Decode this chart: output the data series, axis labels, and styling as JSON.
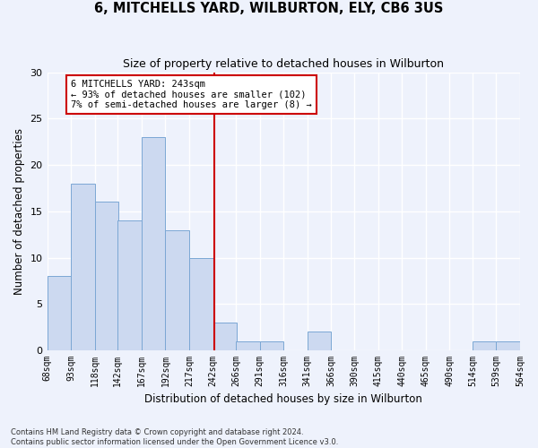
{
  "title": "6, MITCHELLS YARD, WILBURTON, ELY, CB6 3US",
  "subtitle": "Size of property relative to detached houses in Wilburton",
  "xlabel": "Distribution of detached houses by size in Wilburton",
  "ylabel": "Number of detached properties",
  "property_label": "6 MITCHELLS YARD: 243sqm",
  "annotation_line1": "← 93% of detached houses are smaller (102)",
  "annotation_line2": "7% of semi-detached houses are larger (8) →",
  "bar_left_edges": [
    68,
    93,
    118,
    142,
    167,
    192,
    217,
    242,
    266,
    291,
    316,
    341,
    366,
    390,
    415,
    440,
    465,
    490,
    514,
    539
  ],
  "bar_values": [
    8,
    18,
    16,
    14,
    23,
    13,
    10,
    3,
    1,
    1,
    0,
    2,
    0,
    0,
    0,
    0,
    0,
    0,
    1,
    1
  ],
  "bin_width": 25,
  "tick_labels": [
    "68sqm",
    "93sqm",
    "118sqm",
    "142sqm",
    "167sqm",
    "192sqm",
    "217sqm",
    "242sqm",
    "266sqm",
    "291sqm",
    "316sqm",
    "341sqm",
    "366sqm",
    "390sqm",
    "415sqm",
    "440sqm",
    "465sqm",
    "490sqm",
    "514sqm",
    "539sqm",
    "564sqm"
  ],
  "bar_color": "#ccd9f0",
  "bar_edge_color": "#7ba7d4",
  "vline_x": 243,
  "vline_color": "#cc0000",
  "annotation_box_color": "#cc0000",
  "annotation_fill": "#ffffff",
  "background_color": "#eef2fc",
  "grid_color": "#ffffff",
  "ylim": [
    0,
    30
  ],
  "yticks": [
    0,
    5,
    10,
    15,
    20,
    25,
    30
  ],
  "footer_line1": "Contains HM Land Registry data © Crown copyright and database right 2024.",
  "footer_line2": "Contains public sector information licensed under the Open Government Licence v3.0."
}
